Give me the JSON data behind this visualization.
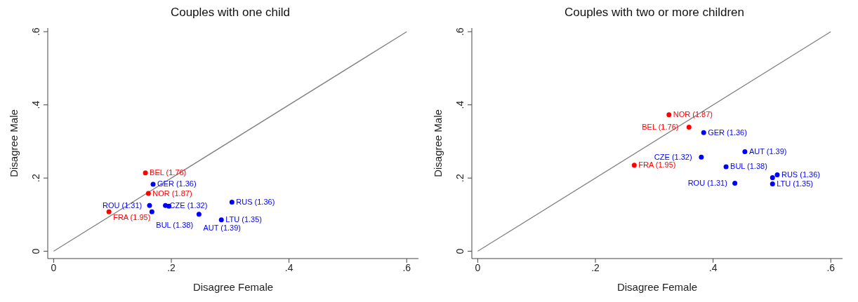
{
  "chart_data": [
    {
      "type": "scatter",
      "title": "Couples with one child",
      "xlabel": "Disagree Female",
      "ylabel": "Disagree Male",
      "xlim": [
        -0.01,
        0.62
      ],
      "ylim": [
        -0.02,
        0.61
      ],
      "xticks": [
        0,
        {
          "value": 0.2,
          "label": ".2"
        },
        {
          "value": 0.4,
          "label": ".4"
        },
        {
          "value": 0.6,
          "label": ".6"
        }
      ],
      "yticks": [
        0,
        {
          "value": 0.2,
          "label": ".2"
        },
        {
          "value": 0.4,
          "label": ".4"
        },
        {
          "value": 0.6,
          "label": ".6"
        }
      ],
      "grid": false,
      "legend": false,
      "marker": "circle",
      "series": [
        {
          "color": "#ff0000",
          "x": [
            0.156,
            0.161,
            0.094
          ],
          "values": [
            0.214,
            0.158,
            0.108
          ]
        },
        {
          "color": "#0000ff",
          "x": [
            0.169,
            0.163,
            0.19,
            0.196,
            0.167,
            0.247,
            0.285,
            0.303
          ],
          "values": [
            0.183,
            0.125,
            0.125,
            0.123,
            0.108,
            0.101,
            0.086,
            0.134
          ]
        },
        {
          "type": "line",
          "color": "#808080",
          "marker": "none",
          "x": [
            0,
            0.6
          ],
          "values": [
            0,
            0.6
          ]
        }
      ],
      "annotations": [
        {
          "text": "BEL (1.76)",
          "x": 0.156,
          "y": 0.214
        },
        {
          "text": "GER (1.36)",
          "x": 0.169,
          "y": 0.183
        },
        {
          "text": "NOR (1.87)",
          "x": 0.161,
          "y": 0.158
        },
        {
          "text": "ROU (1.31)",
          "x": 0.163,
          "y": 0.125
        },
        {
          "text": "CZE (1.32)",
          "x": 0.19,
          "y": 0.125
        },
        {
          "text": "FRA (1.95)",
          "x": 0.094,
          "y": 0.108
        },
        {
          "text": "BUL (1.38)",
          "x": 0.167,
          "y": 0.108
        },
        {
          "text": "AUT (1.39)",
          "x": 0.247,
          "y": 0.101
        },
        {
          "text": "LTU (1.35)",
          "x": 0.285,
          "y": 0.086
        },
        {
          "text": "RUS (1.36)",
          "x": 0.303,
          "y": 0.134
        }
      ]
    },
    {
      "type": "scatter",
      "title": "Couples with two or more children",
      "xlabel": "Disagree Female",
      "ylabel": "Disagree Male",
      "xlim": [
        -0.01,
        0.62
      ],
      "ylim": [
        -0.02,
        0.61
      ],
      "xticks": [
        0,
        {
          "value": 0.2,
          "label": ".2"
        },
        {
          "value": 0.4,
          "label": ".4"
        },
        {
          "value": 0.6,
          "label": ".6"
        }
      ],
      "yticks": [
        0,
        {
          "value": 0.2,
          "label": ".2"
        },
        {
          "value": 0.4,
          "label": ".4"
        },
        {
          "value": 0.6,
          "label": ".6"
        }
      ],
      "grid": false,
      "legend": false,
      "marker": "circle",
      "series": [
        {
          "color": "#ff0000",
          "x": [
            0.325,
            0.359,
            0.266
          ],
          "values": [
            0.373,
            0.339,
            0.235
          ]
        },
        {
          "color": "#0000ff",
          "x": [
            0.384,
            0.454,
            0.38,
            0.422,
            0.437,
            0.509,
            0.501,
            0.501
          ],
          "values": [
            0.324,
            0.272,
            0.257,
            0.231,
            0.186,
            0.209,
            0.201,
            0.184
          ]
        },
        {
          "type": "line",
          "color": "#808080",
          "marker": "none",
          "x": [
            0,
            0.6
          ],
          "values": [
            0,
            0.6
          ]
        }
      ],
      "annotations": [
        {
          "text": "NOR (1.87)",
          "x": 0.325,
          "y": 0.373
        },
        {
          "text": "BEL (1.76)",
          "x": 0.359,
          "y": 0.339
        },
        {
          "text": "GER (1.36)",
          "x": 0.384,
          "y": 0.324
        },
        {
          "text": "AUT (1.39)",
          "x": 0.454,
          "y": 0.272
        },
        {
          "text": "CZE (1.32)",
          "x": 0.38,
          "y": 0.257
        },
        {
          "text": "FRA (1.95)",
          "x": 0.266,
          "y": 0.235
        },
        {
          "text": "BUL (1.38)",
          "x": 0.422,
          "y": 0.231
        },
        {
          "text": "ROU (1.31)",
          "x": 0.437,
          "y": 0.186
        },
        {
          "text": "RUS (1.36)",
          "x": 0.509,
          "y": 0.209
        },
        {
          "text": "LTU (1.35)",
          "x": 0.501,
          "y": 0.184
        }
      ]
    }
  ]
}
